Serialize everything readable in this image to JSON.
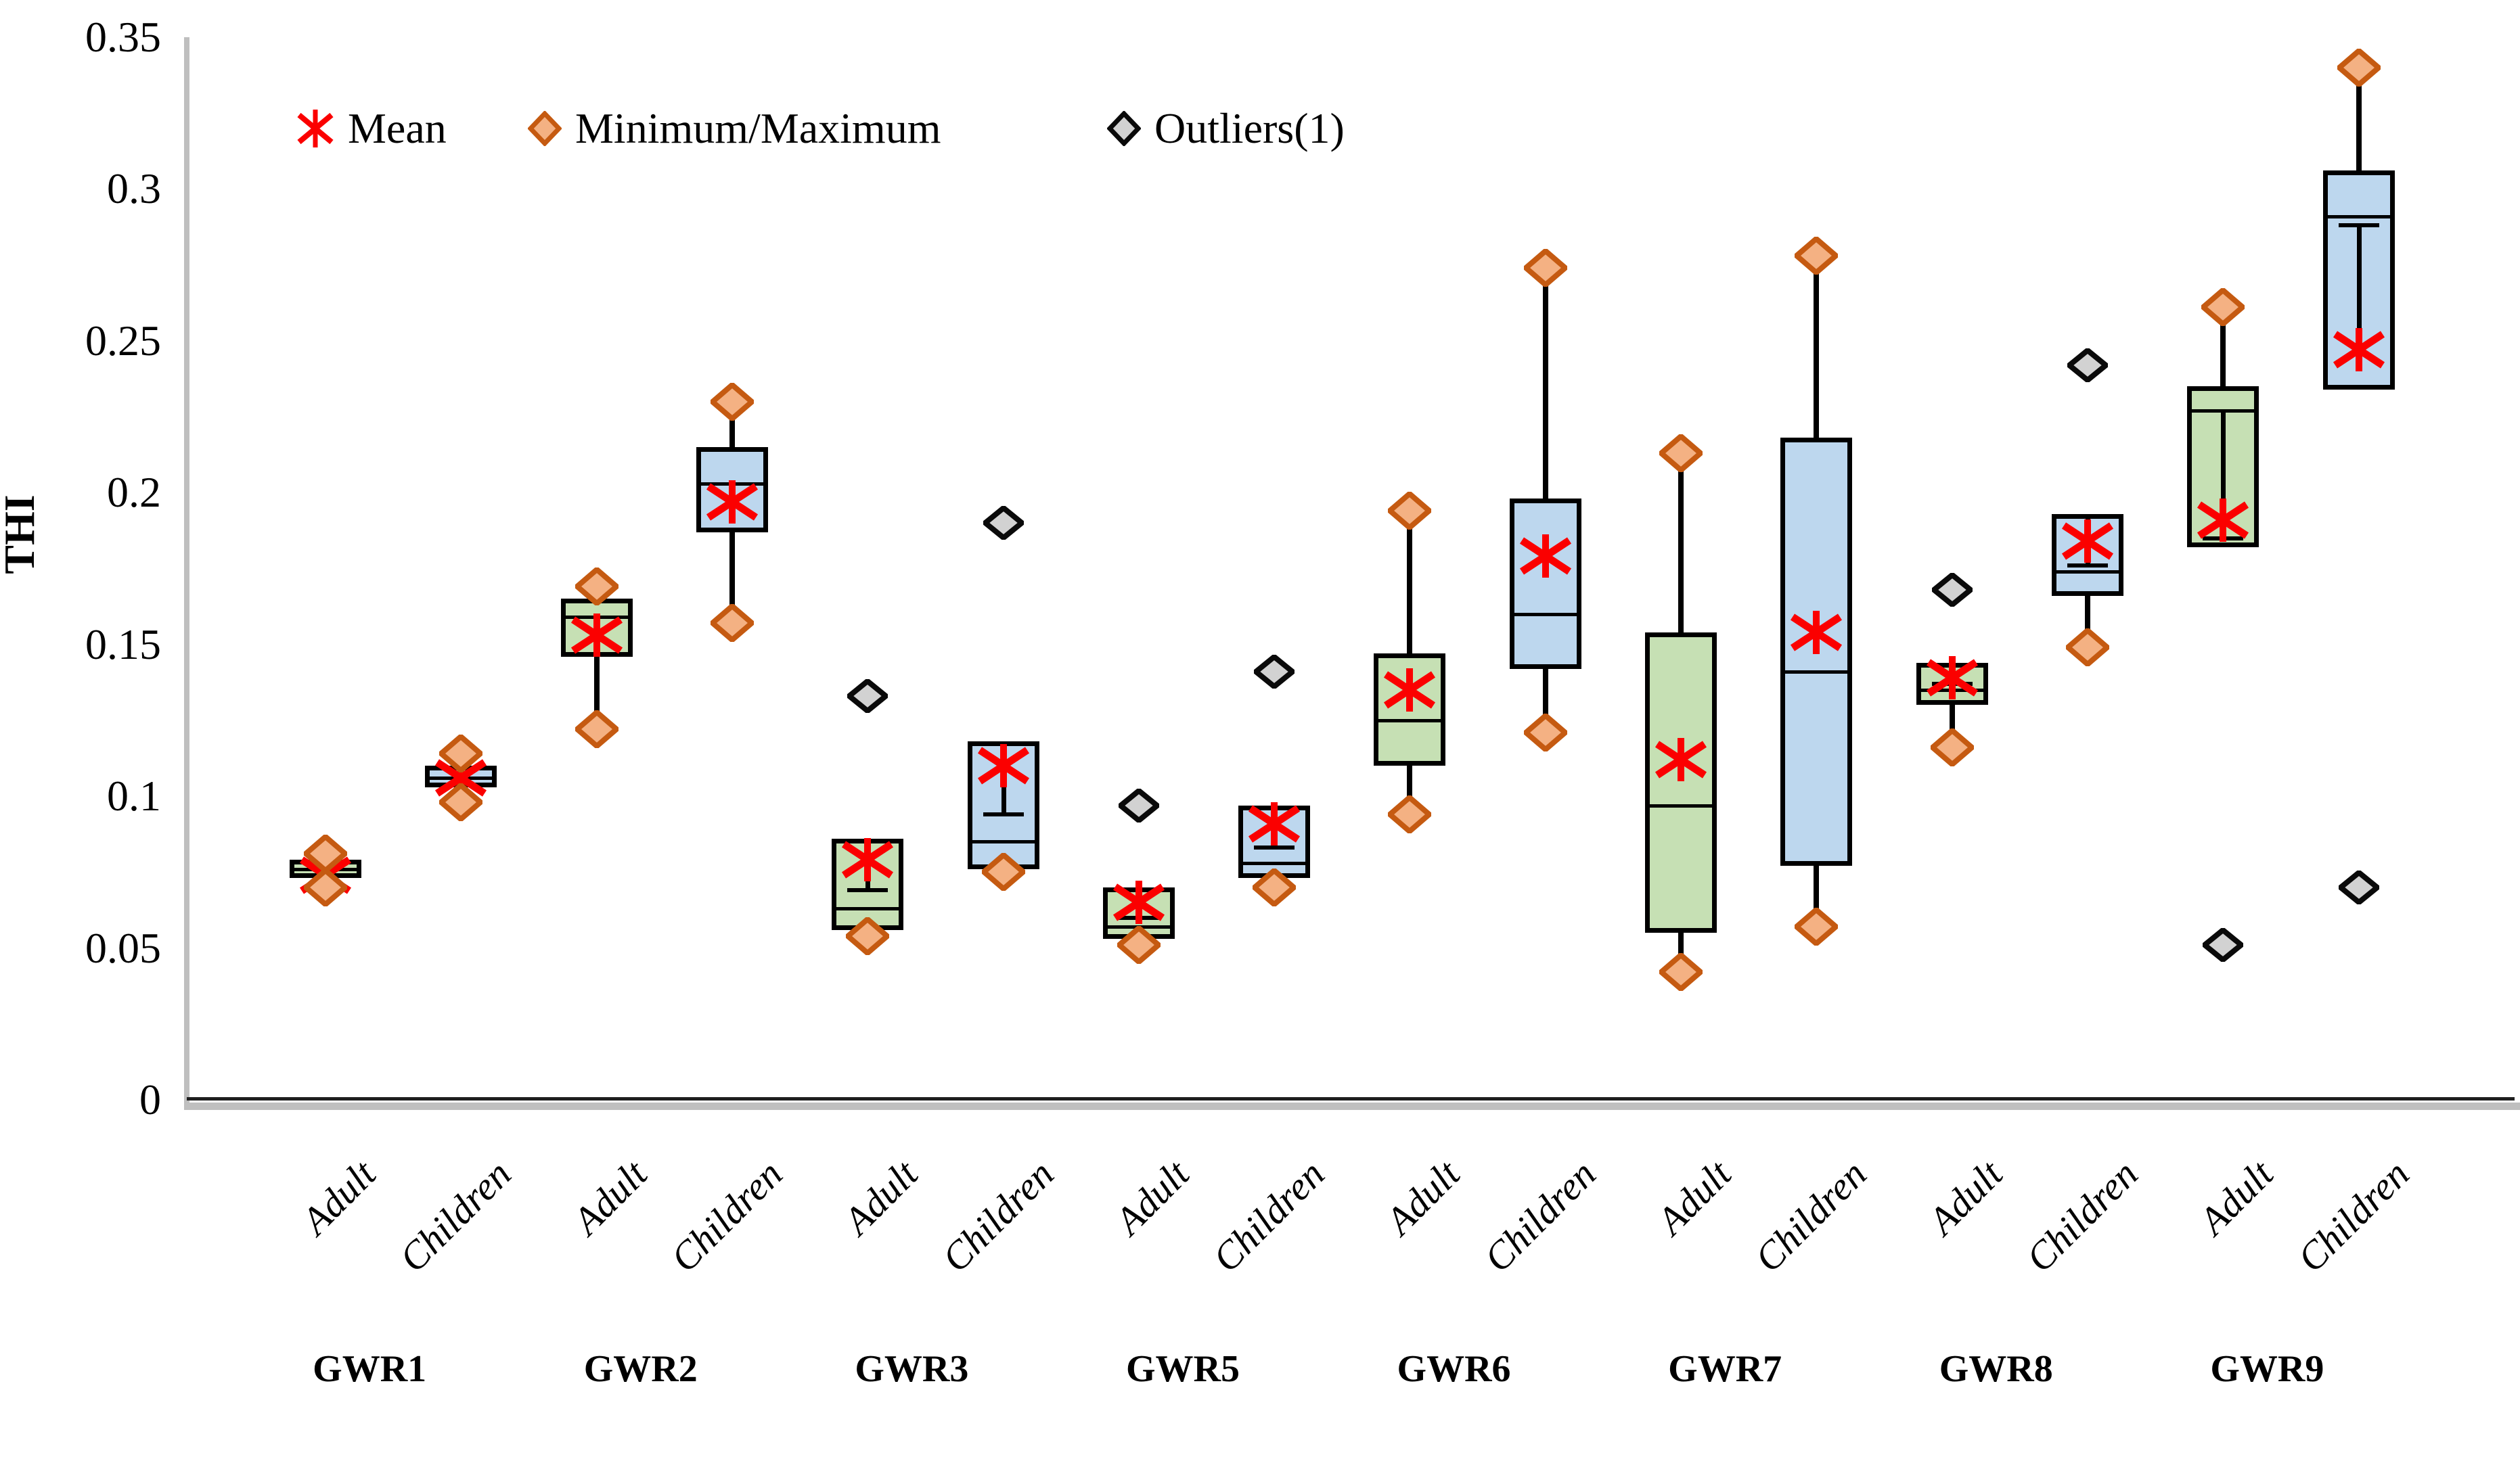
{
  "legend": {
    "items": [
      {
        "label": "Mean",
        "marker": "mean-asterisk"
      },
      {
        "label": "Minimum/Maximum",
        "marker": "minmax-diamond"
      },
      {
        "label": "Outliers(1)",
        "marker": "outlier-diamond"
      }
    ]
  },
  "y_axis": {
    "title": "THI",
    "min": 0,
    "max": 0.35,
    "ticks": [
      {
        "label": "0.35",
        "value": 0.35
      },
      {
        "label": "0.3",
        "value": 0.3
      },
      {
        "label": "0.25",
        "value": 0.25
      },
      {
        "label": "0.2",
        "value": 0.2
      },
      {
        "label": "0.15",
        "value": 0.15
      },
      {
        "label": "0.1",
        "value": 0.1
      },
      {
        "label": "0.05",
        "value": 0.05
      },
      {
        "label": "0",
        "value": 0
      }
    ]
  },
  "x_axis": {
    "groups": [
      {
        "name": "GWR1",
        "categories": [
          "Adult",
          "Children"
        ]
      },
      {
        "name": "GWR2",
        "categories": [
          "Adult",
          "Children"
        ]
      },
      {
        "name": "GWR3",
        "categories": [
          "Adult",
          "Children"
        ]
      },
      {
        "name": "GWR5",
        "categories": [
          "Adult",
          "Children"
        ]
      },
      {
        "name": "GWR6",
        "categories": [
          "Adult",
          "Children"
        ]
      },
      {
        "name": "GWR7",
        "categories": [
          "Adult",
          "Children"
        ]
      },
      {
        "name": "GWR8",
        "categories": [
          "Adult",
          "Children"
        ]
      },
      {
        "name": "GWR9",
        "categories": [
          "Adult",
          "Children"
        ]
      }
    ]
  },
  "colors": {
    "adult_fill": "#C6E0B4",
    "children_fill": "#BDD7EE",
    "box_border": "#000000",
    "minmax_fill": "#F4B183",
    "minmax_border": "#C55A11",
    "outlier_fill": "#D2D2D2",
    "outlier_border": "#0A0A0A",
    "mean_color": "#FB0000",
    "axis_gray": "#BFBFBF",
    "axis_dark": "#1F1F1F"
  },
  "chart_data": {
    "type": "box",
    "title": "",
    "xlabel": "",
    "ylabel": "THI",
    "ylim": [
      0,
      0.35
    ],
    "legend_position": "top-left-inside",
    "grid": false,
    "boxes": [
      {
        "group": "GWR1",
        "category": "Adult",
        "q1": 0.073,
        "median": 0.076,
        "q3": 0.079,
        "mean": 0.074,
        "min": 0.07,
        "max": 0.081,
        "whisker_min": false,
        "whisker_max": false,
        "inner_whisker": null,
        "outliers": []
      },
      {
        "group": "GWR1",
        "category": "Children",
        "q1": 0.103,
        "median": 0.106,
        "q3": 0.11,
        "mean": 0.106,
        "min": 0.098,
        "max": 0.114,
        "whisker_min": true,
        "whisker_max": true,
        "inner_whisker": null,
        "outliers": []
      },
      {
        "group": "GWR2",
        "category": "Adult",
        "q1": 0.146,
        "median": 0.159,
        "q3": 0.165,
        "mean": 0.153,
        "min": 0.122,
        "max": 0.169,
        "whisker_min": true,
        "whisker_max": false,
        "inner_whisker": null,
        "outliers": []
      },
      {
        "group": "GWR2",
        "category": "Children",
        "q1": 0.187,
        "median": 0.203,
        "q3": 0.215,
        "mean": 0.197,
        "min": 0.157,
        "max": 0.23,
        "whisker_min": true,
        "whisker_max": true,
        "inner_whisker": null,
        "outliers": []
      },
      {
        "group": "GWR3",
        "category": "Adult",
        "q1": 0.056,
        "median": 0.063,
        "q3": 0.086,
        "mean": 0.079,
        "min": 0.054,
        "max": null,
        "whisker_min": false,
        "whisker_max": false,
        "inner_whisker": {
          "from": 0.086,
          "to": 0.069,
          "cap": "bottom"
        },
        "outliers": [
          0.133
        ]
      },
      {
        "group": "GWR3",
        "category": "Children",
        "q1": 0.076,
        "median": 0.085,
        "q3": 0.118,
        "mean": 0.11,
        "min": 0.075,
        "max": null,
        "whisker_min": false,
        "whisker_max": false,
        "inner_whisker": {
          "from": 0.118,
          "to": 0.094,
          "cap": "bottom"
        },
        "outliers": [
          0.19
        ]
      },
      {
        "group": "GWR5",
        "category": "Adult",
        "q1": 0.053,
        "median": 0.057,
        "q3": 0.07,
        "mean": 0.065,
        "min": 0.051,
        "max": null,
        "whisker_min": false,
        "whisker_max": false,
        "inner_whisker": {
          "from": 0.07,
          "to": 0.06,
          "cap": "bottom"
        },
        "outliers": [
          0.097
        ]
      },
      {
        "group": "GWR5",
        "category": "Children",
        "q1": 0.073,
        "median": 0.078,
        "q3": 0.097,
        "mean": 0.091,
        "min": 0.07,
        "max": null,
        "whisker_min": false,
        "whisker_max": false,
        "inner_whisker": {
          "from": 0.097,
          "to": 0.083,
          "cap": "bottom"
        },
        "outliers": [
          0.141
        ]
      },
      {
        "group": "GWR6",
        "category": "Adult",
        "q1": 0.11,
        "median": 0.125,
        "q3": 0.147,
        "mean": 0.135,
        "min": 0.094,
        "max": 0.194,
        "whisker_min": true,
        "whisker_max": true,
        "inner_whisker": null,
        "outliers": []
      },
      {
        "group": "GWR6",
        "category": "Children",
        "q1": 0.142,
        "median": 0.16,
        "q3": 0.198,
        "mean": 0.179,
        "min": 0.121,
        "max": 0.274,
        "whisker_min": true,
        "whisker_max": true,
        "inner_whisker": null,
        "outliers": []
      },
      {
        "group": "GWR7",
        "category": "Adult",
        "q1": 0.055,
        "median": 0.097,
        "q3": 0.154,
        "mean": 0.112,
        "min": 0.042,
        "max": 0.213,
        "whisker_min": true,
        "whisker_max": true,
        "inner_whisker": null,
        "outliers": []
      },
      {
        "group": "GWR7",
        "category": "Children",
        "q1": 0.077,
        "median": 0.141,
        "q3": 0.218,
        "mean": 0.154,
        "min": 0.057,
        "max": 0.278,
        "whisker_min": true,
        "whisker_max": true,
        "inner_whisker": null,
        "outliers": []
      },
      {
        "group": "GWR8",
        "category": "Adult",
        "q1": 0.13,
        "median": 0.135,
        "q3": 0.144,
        "mean": 0.139,
        "min": 0.116,
        "max": null,
        "whisker_min": true,
        "whisker_max": false,
        "inner_whisker": {
          "from": 0.144,
          "to": 0.137,
          "cap": "bottom"
        },
        "outliers": [
          0.168
        ]
      },
      {
        "group": "GWR8",
        "category": "Children",
        "q1": 0.166,
        "median": 0.174,
        "q3": 0.193,
        "mean": 0.184,
        "min": 0.149,
        "max": null,
        "whisker_min": true,
        "whisker_max": false,
        "inner_whisker": {
          "from": 0.193,
          "to": 0.176,
          "cap": "bottom"
        },
        "outliers": [
          0.242
        ]
      },
      {
        "group": "GWR9",
        "category": "Adult",
        "q1": 0.182,
        "median": 0.227,
        "q3": 0.235,
        "mean": 0.191,
        "min": null,
        "max": 0.261,
        "whisker_min": false,
        "whisker_max": true,
        "inner_whisker": {
          "from": 0.227,
          "to": 0.185,
          "cap": "bottom"
        },
        "outliers": [
          0.051
        ]
      },
      {
        "group": "GWR9",
        "category": "Children",
        "q1": 0.234,
        "median": 0.291,
        "q3": 0.306,
        "mean": 0.247,
        "min": null,
        "max": 0.34,
        "whisker_min": false,
        "whisker_max": true,
        "inner_whisker": {
          "from": 0.288,
          "to": 0.247,
          "cap": "top"
        },
        "outliers": [
          0.07
        ]
      }
    ]
  }
}
